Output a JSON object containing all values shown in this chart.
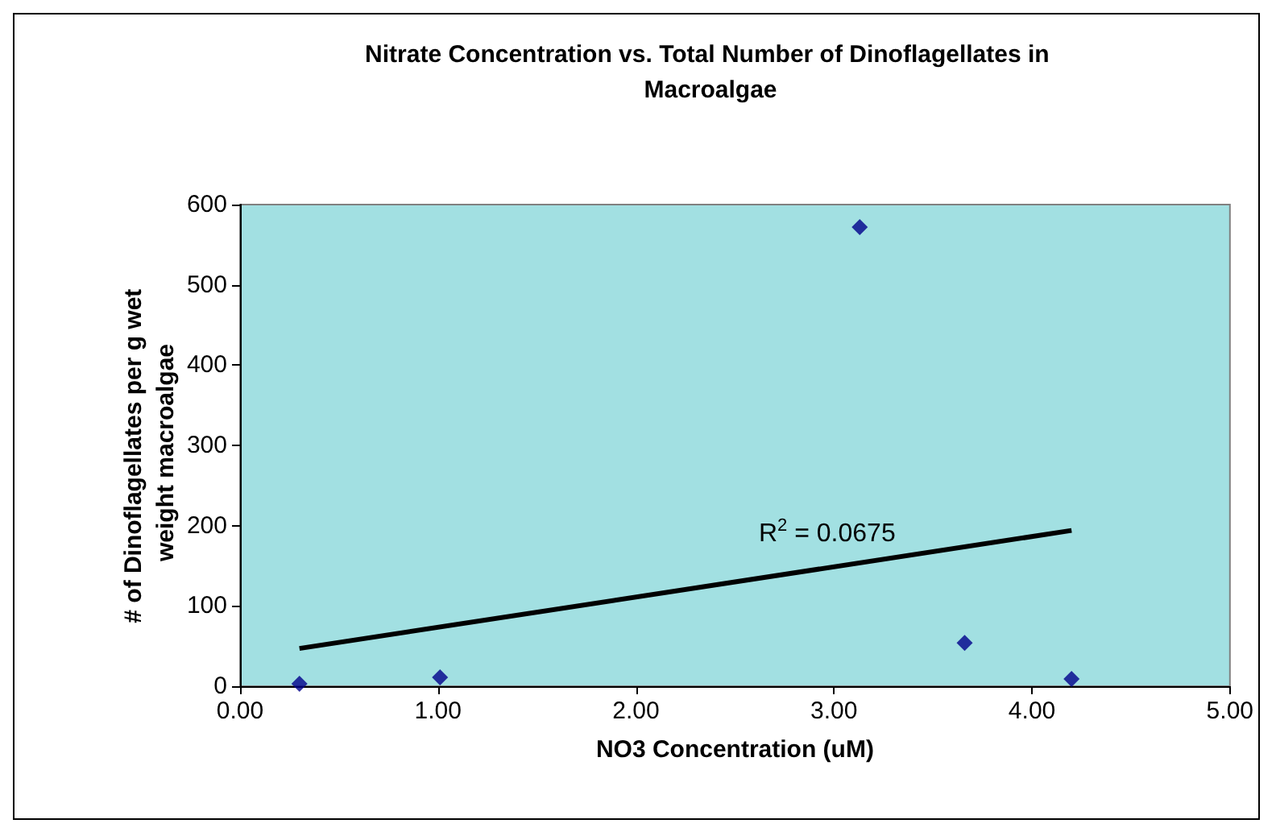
{
  "chart_data": {
    "type": "scatter",
    "title": "Nitrate Concentration vs. Total Number of Dinoflagellates in Macroalgae",
    "xlabel": "NO3 Concentration (uM)",
    "ylabel": "# of Dinoflagellates per g wet weight macroalgae",
    "x": [
      0.3,
      1.01,
      3.13,
      3.66,
      4.2
    ],
    "series": [
      {
        "color": "#00008b",
        "values": [
          3,
          11,
          572,
          54,
          9
        ]
      },
      {
        "type": "line",
        "color": "#000000",
        "x": [
          0.3,
          4.2
        ],
        "values": [
          47,
          194
        ],
        "marker": "none"
      }
    ],
    "marker": "diamond",
    "xlim": [
      0,
      5
    ],
    "xticks": [
      {
        "value": 0,
        "label": "0.00"
      },
      {
        "value": 1,
        "label": "1.00"
      },
      {
        "value": 2,
        "label": "2.00"
      },
      {
        "value": 3,
        "label": "3.00"
      },
      {
        "value": 4,
        "label": "4.00"
      },
      {
        "value": 5,
        "label": "5.00"
      }
    ],
    "ylim": [
      0,
      600
    ],
    "yticks": [
      0,
      100,
      200,
      300,
      400,
      500,
      600
    ],
    "annotations": [
      "R$^{2}$ = 0.0675"
    ],
    "grid": false
  }
}
